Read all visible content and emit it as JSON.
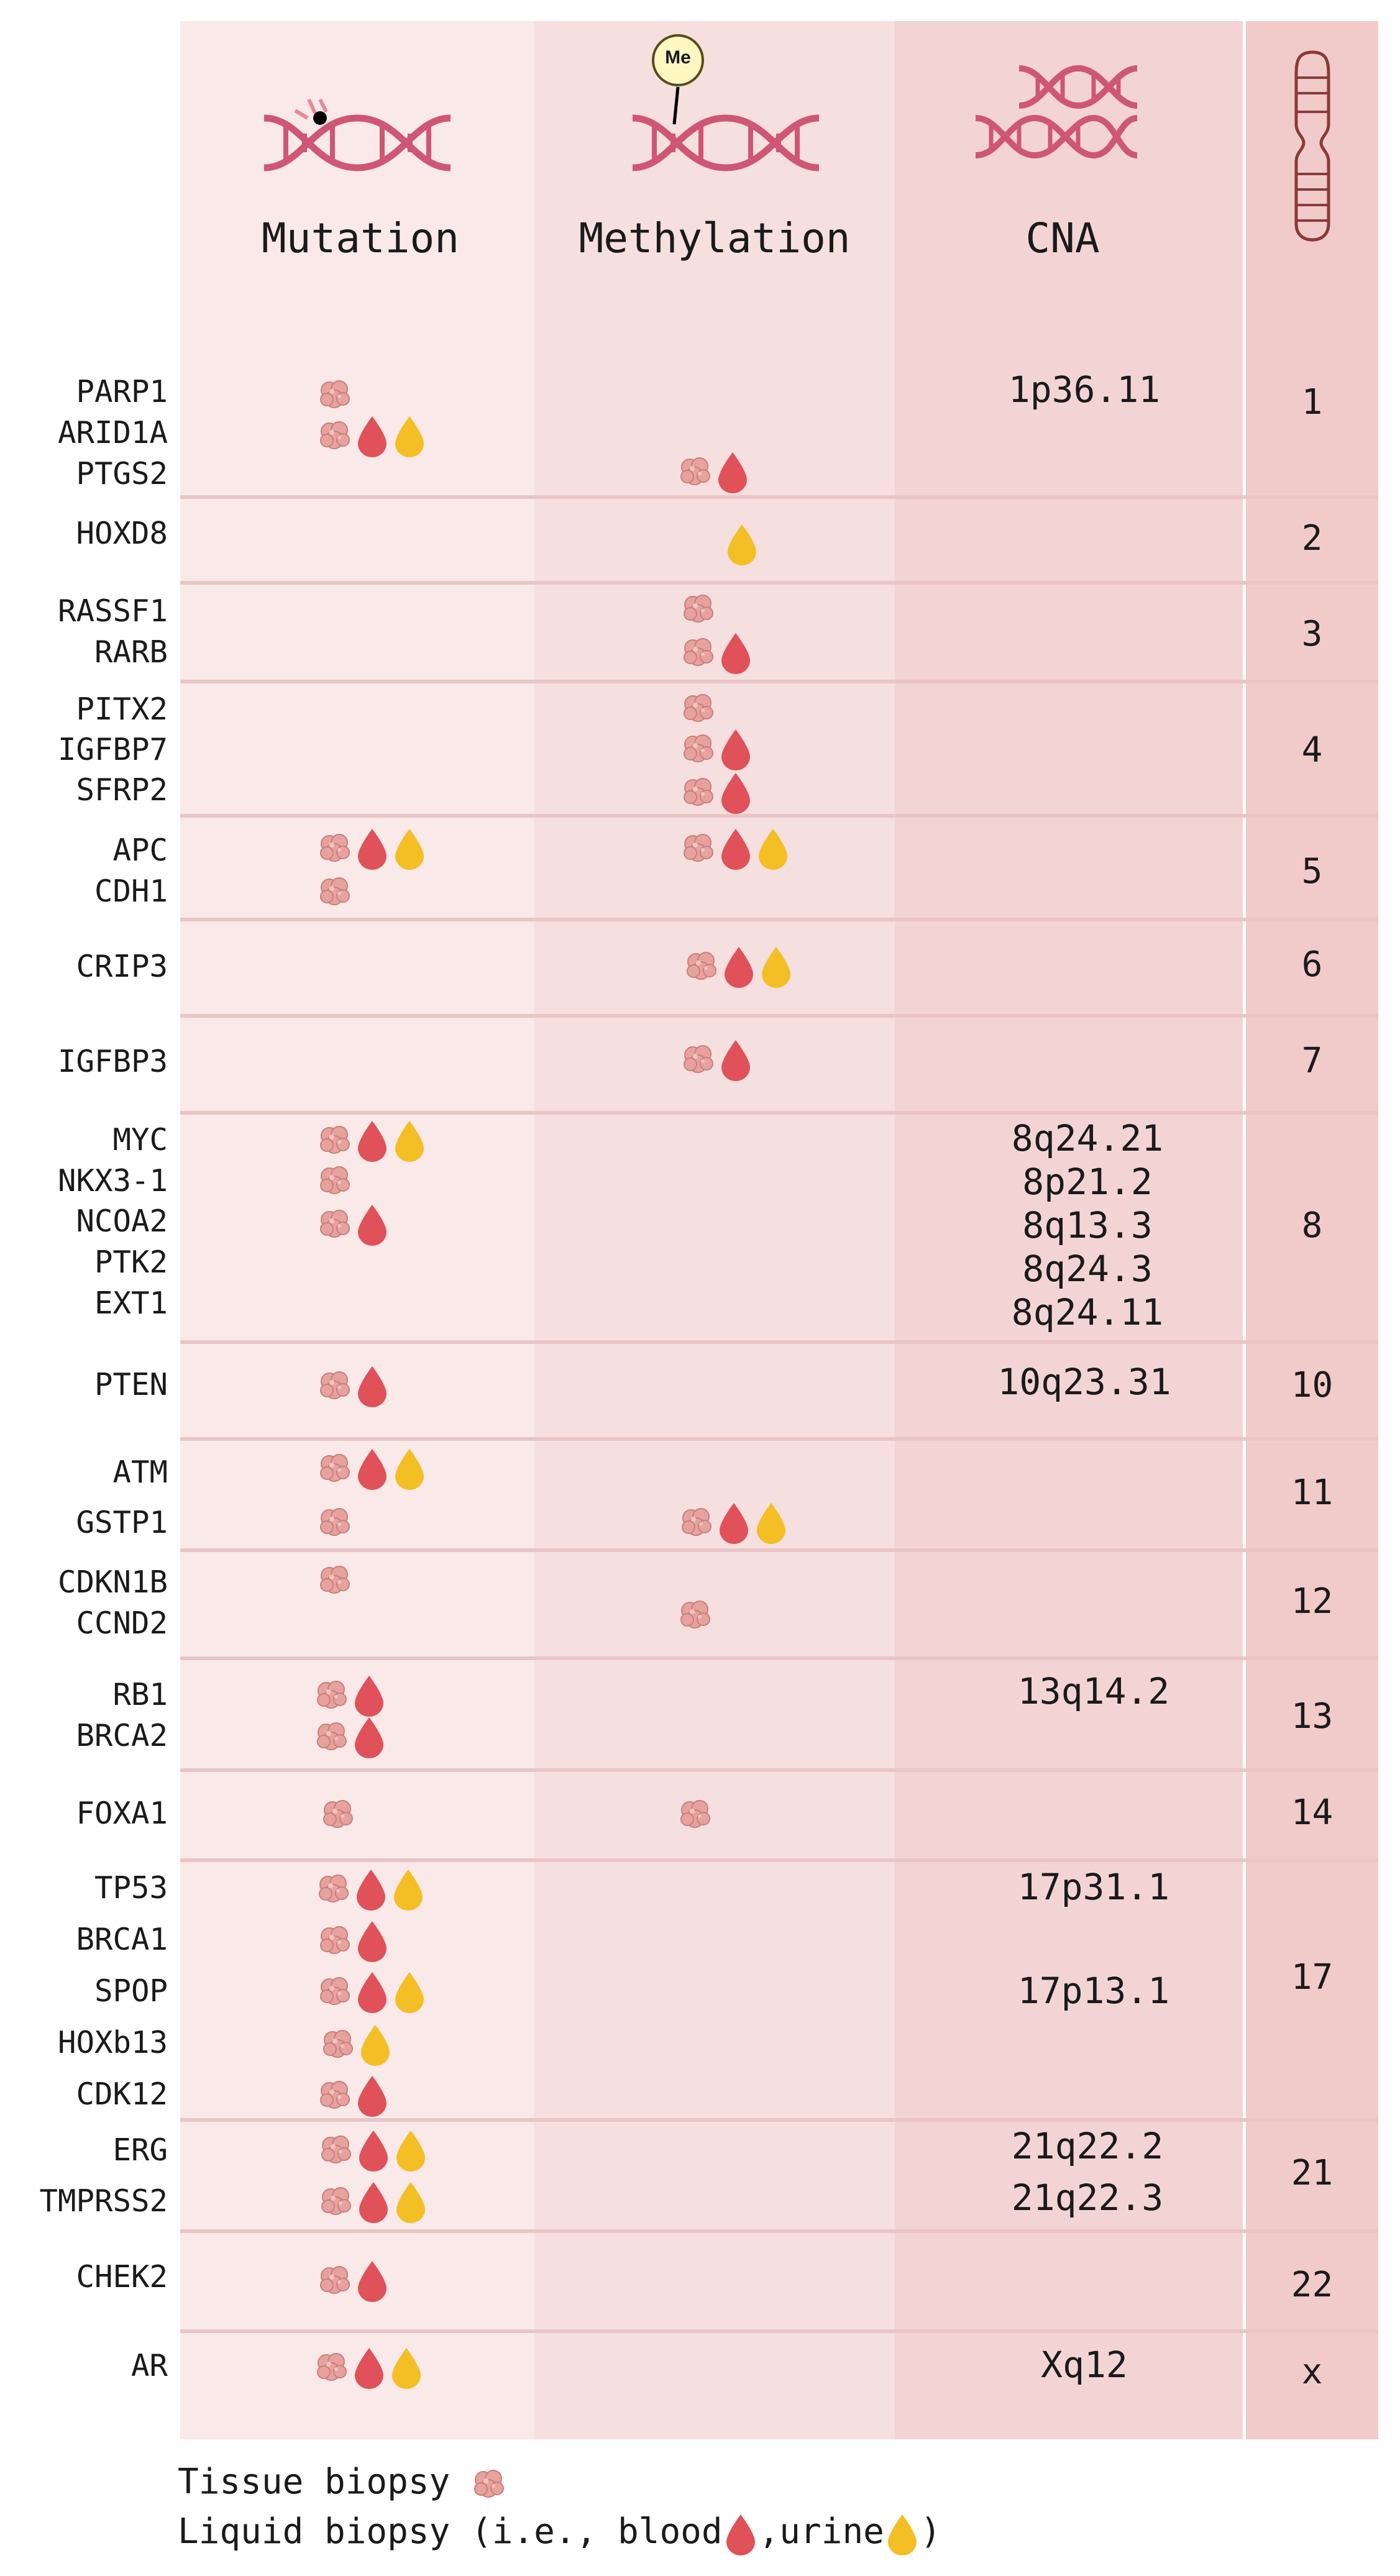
{
  "headers": {
    "mutation": "Mutation",
    "methylation": "Methylation",
    "cna": "CNA",
    "methyl_tag": "Me"
  },
  "icons": {
    "tissue": "tissue-biopsy-icon",
    "blood": "blood-drop-icon",
    "urine": "urine-drop-icon",
    "tissue_color": "#e8a29e",
    "blood_color": "#e05159",
    "urine_color": "#f4be25",
    "dna_color": "#cf5674"
  },
  "genes": [
    {
      "name": "PARP1",
      "mutation": [
        "tissue"
      ],
      "methylation": []
    },
    {
      "name": "ARID1A",
      "mutation": [
        "tissue",
        "blood",
        "urine"
      ],
      "methylation": []
    },
    {
      "name": "PTGS2",
      "mutation": [],
      "methylation": [
        "tissue",
        "blood"
      ]
    },
    {
      "name": "HOXD8",
      "mutation": [],
      "methylation": [
        "urine"
      ]
    },
    {
      "name": "RASSF1",
      "mutation": [],
      "methylation": [
        "tissue"
      ]
    },
    {
      "name": "RARB",
      "mutation": [],
      "methylation": [
        "tissue",
        "blood"
      ]
    },
    {
      "name": "PITX2",
      "mutation": [],
      "methylation": [
        "tissue"
      ]
    },
    {
      "name": "IGFBP7",
      "mutation": [],
      "methylation": [
        "tissue",
        "blood"
      ]
    },
    {
      "name": "SFRP2",
      "mutation": [],
      "methylation": [
        "tissue",
        "blood"
      ]
    },
    {
      "name": "APC",
      "mutation": [
        "tissue",
        "blood",
        "urine"
      ],
      "methylation": [
        "tissue",
        "blood",
        "urine"
      ]
    },
    {
      "name": "CDH1",
      "mutation": [
        "tissue"
      ],
      "methylation": []
    },
    {
      "name": "CRIP3",
      "mutation": [],
      "methylation": [
        "tissue",
        "blood",
        "urine"
      ]
    },
    {
      "name": "IGFBP3",
      "mutation": [],
      "methylation": [
        "tissue",
        "blood"
      ]
    },
    {
      "name": "MYC",
      "mutation": [
        "tissue",
        "blood",
        "urine"
      ],
      "methylation": []
    },
    {
      "name": "NKX3-1",
      "mutation": [
        "tissue"
      ],
      "methylation": []
    },
    {
      "name": "NCOA2",
      "mutation": [
        "tissue",
        "blood"
      ],
      "methylation": []
    },
    {
      "name": "PTK2",
      "mutation": [],
      "methylation": []
    },
    {
      "name": "EXT1",
      "mutation": [],
      "methylation": []
    },
    {
      "name": "PTEN",
      "mutation": [
        "tissue",
        "blood"
      ],
      "methylation": []
    },
    {
      "name": "ATM",
      "mutation": [
        "tissue",
        "blood",
        "urine"
      ],
      "methylation": []
    },
    {
      "name": "GSTP1",
      "mutation": [
        "tissue"
      ],
      "methylation": [
        "tissue",
        "blood",
        "urine"
      ]
    },
    {
      "name": "CDKN1B",
      "mutation": [
        "tissue"
      ],
      "methylation": []
    },
    {
      "name": "CCND2",
      "mutation": [],
      "methylation": [
        "tissue"
      ]
    },
    {
      "name": "RB1",
      "mutation": [
        "tissue",
        "blood"
      ],
      "methylation": []
    },
    {
      "name": "BRCA2",
      "mutation": [
        "tissue",
        "blood"
      ],
      "methylation": []
    },
    {
      "name": "FOXA1",
      "mutation": [
        "tissue"
      ],
      "methylation": [
        "tissue"
      ]
    },
    {
      "name": "TP53",
      "mutation": [
        "tissue",
        "blood",
        "urine"
      ],
      "methylation": []
    },
    {
      "name": "BRCA1",
      "mutation": [
        "tissue",
        "blood"
      ],
      "methylation": []
    },
    {
      "name": "SPOP",
      "mutation": [
        "tissue",
        "blood",
        "urine"
      ],
      "methylation": []
    },
    {
      "name": "HOXb13",
      "mutation": [
        "tissue",
        "urine"
      ],
      "methylation": []
    },
    {
      "name": "CDK12",
      "mutation": [
        "tissue",
        "blood"
      ],
      "methylation": []
    },
    {
      "name": "ERG",
      "mutation": [
        "tissue",
        "blood",
        "urine"
      ],
      "methylation": []
    },
    {
      "name": "TMPRSS2",
      "mutation": [
        "tissue",
        "blood",
        "urine"
      ],
      "methylation": []
    },
    {
      "name": "CHEK2",
      "mutation": [
        "tissue",
        "blood"
      ],
      "methylation": []
    },
    {
      "name": "AR",
      "mutation": [
        "tissue",
        "blood",
        "urine"
      ],
      "methylation": []
    }
  ],
  "cna": [
    "1p36.11",
    "8q24.21",
    "8p21.2",
    "8q13.3",
    "8q24.3",
    "8q24.11",
    "10q23.31",
    "13q14.2",
    "17p31.1",
    "17p13.1",
    "21q22.2",
    "21q22.3",
    "Xq12"
  ],
  "chromosomes": [
    "1",
    "2",
    "3",
    "4",
    "5",
    "6",
    "7",
    "8",
    "10",
    "11",
    "12",
    "13",
    "14",
    "17",
    "21",
    "22",
    "x"
  ],
  "legend": {
    "tissue": "Tissue biopsy",
    "liquid_prefix": "Liquid biopsy (i.e., blood",
    "liquid_middle": ",urine",
    "liquid_suffix": ")"
  }
}
